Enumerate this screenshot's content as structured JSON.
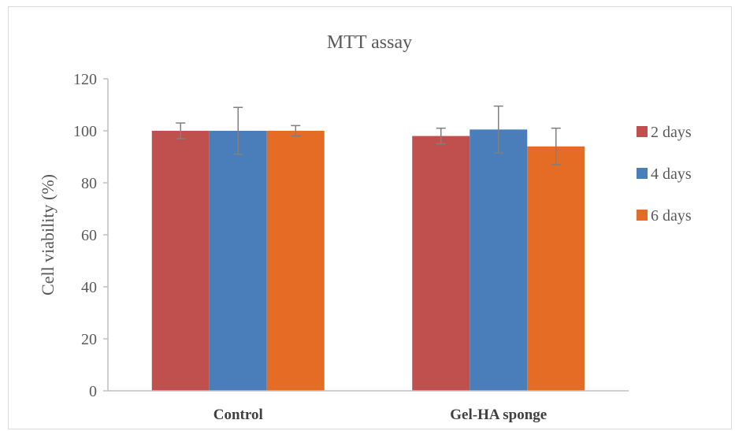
{
  "chart_data": {
    "type": "bar",
    "title": "MTT assay",
    "xlabel": "",
    "ylabel": "Cell viability (%)",
    "ylim": [
      0,
      120
    ],
    "yticks": [
      0,
      20,
      40,
      60,
      80,
      100,
      120
    ],
    "categories": [
      "Control",
      "Gel-HA sponge"
    ],
    "series": [
      {
        "name": "2 days",
        "color": "#c0504d",
        "values": [
          100,
          98
        ],
        "errors": [
          3,
          3
        ]
      },
      {
        "name": "4 days",
        "color": "#4a7ebb",
        "values": [
          100,
          100.5
        ],
        "errors": [
          9,
          9
        ]
      },
      {
        "name": "6 days",
        "color": "#e46c24",
        "values": [
          100,
          94
        ],
        "errors": [
          2,
          7
        ]
      }
    ],
    "grid": false,
    "legend_position": "right"
  }
}
